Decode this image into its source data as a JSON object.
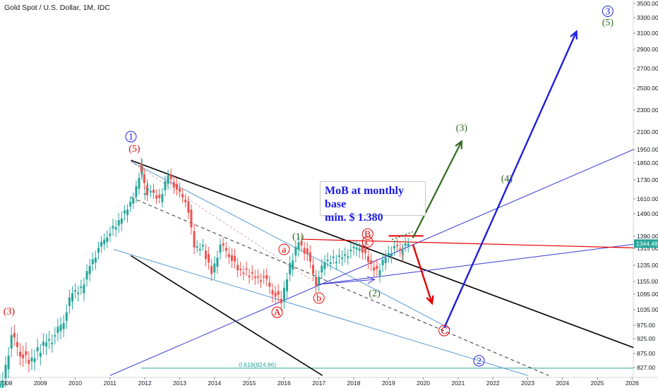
{
  "header": {
    "title": "Gold Spot / U.S. Dollar, 1M, IDC"
  },
  "annotation": {
    "line1": "MoB at monthly base",
    "line2": "min. $ 1.380"
  },
  "colors": {
    "up": "#26a69a",
    "down": "#ef5350",
    "red": "#e60000",
    "blue": "#1f1fe0",
    "green": "#2e6b1e",
    "black": "#000000",
    "lightblue": "#5b9bd5",
    "fib": "#26a69a",
    "circ": "#1a1acc"
  },
  "chart_data": {
    "type": "candlestick",
    "title": "Gold Spot / U.S. Dollar, 1M, IDC",
    "x_ticks": [
      "2008",
      "2009",
      "2010",
      "2011",
      "2012",
      "2013",
      "2014",
      "2015",
      "2016",
      "2017",
      "2018",
      "2019",
      "2020",
      "2021",
      "2022",
      "2023",
      "2024",
      "2025",
      "2026"
    ],
    "y_ticks": [
      827,
      875,
      925,
      975,
      1035,
      1095,
      1155,
      1235,
      1315,
      1390,
      1490,
      1610,
      1730,
      1850,
      1950,
      2100,
      2300,
      2500,
      2700,
      2900,
      3100,
      3300,
      3500
    ],
    "ylim": [
      800,
      3500
    ],
    "last_price": "1344.48",
    "fib_label": "0.618(824.86)",
    "fib_level": 824.86,
    "quarterly_closes": [
      [
        2007.75,
        720,
        790
      ],
      [
        2008.0,
        790,
        930
      ],
      [
        2008.25,
        930,
        880
      ],
      [
        2008.5,
        880,
        840
      ],
      [
        2008.75,
        840,
        880
      ],
      [
        2009.0,
        880,
        920
      ],
      [
        2009.25,
        920,
        930
      ],
      [
        2009.5,
        930,
        1000
      ],
      [
        2009.75,
        1000,
        1100
      ],
      [
        2010.0,
        1100,
        1115
      ],
      [
        2010.25,
        1115,
        1240
      ],
      [
        2010.5,
        1240,
        1310
      ],
      [
        2010.75,
        1310,
        1400
      ],
      [
        2011.0,
        1400,
        1430
      ],
      [
        2011.25,
        1430,
        1500
      ],
      [
        2011.5,
        1500,
        1620
      ],
      [
        2011.75,
        1620,
        1830
      ],
      [
        2011.9,
        1830,
        1650
      ],
      [
        2012.0,
        1650,
        1660
      ],
      [
        2012.25,
        1660,
        1600
      ],
      [
        2012.5,
        1600,
        1770
      ],
      [
        2012.75,
        1770,
        1660
      ],
      [
        2013.0,
        1660,
        1600
      ],
      [
        2013.25,
        1600,
        1320
      ],
      [
        2013.5,
        1320,
        1320
      ],
      [
        2013.75,
        1320,
        1200
      ],
      [
        2014.0,
        1200,
        1330
      ],
      [
        2014.25,
        1330,
        1290
      ],
      [
        2014.5,
        1290,
        1210
      ],
      [
        2014.75,
        1210,
        1200
      ],
      [
        2015.0,
        1200,
        1180
      ],
      [
        2015.25,
        1180,
        1170
      ],
      [
        2015.5,
        1170,
        1110
      ],
      [
        2015.75,
        1110,
        1060
      ],
      [
        2016.0,
        1060,
        1230
      ],
      [
        2016.25,
        1230,
        1360
      ],
      [
        2016.5,
        1360,
        1280
      ],
      [
        2016.75,
        1280,
        1150
      ],
      [
        2017.0,
        1150,
        1250
      ],
      [
        2017.25,
        1250,
        1260
      ],
      [
        2017.5,
        1260,
        1280
      ],
      [
        2017.75,
        1280,
        1300
      ],
      [
        2018.0,
        1300,
        1330
      ],
      [
        2018.25,
        1330,
        1250
      ],
      [
        2018.5,
        1250,
        1200
      ],
      [
        2018.75,
        1200,
        1280
      ],
      [
        2019.0,
        1280,
        1320
      ],
      [
        2019.25,
        1320,
        1300
      ],
      [
        2019.4,
        1300,
        1344
      ]
    ],
    "labels": [
      {
        "text": "(3)",
        "x": 2008.1,
        "y": 1030,
        "color": "red"
      },
      {
        "text": "(5)",
        "x": 2011.7,
        "y": 1960,
        "color": "red"
      },
      {
        "text": "1",
        "x": 2011.6,
        "y": 2060,
        "color": "blue",
        "circle": true
      },
      {
        "text": "(1)",
        "x": 2016.4,
        "y": 1390,
        "color": "green"
      },
      {
        "text": "(2)",
        "x": 2018.6,
        "y": 1100,
        "color": "green"
      },
      {
        "text": "(3)",
        "x": 2021.1,
        "y": 2140,
        "color": "green"
      },
      {
        "text": "(4)",
        "x": 2022.4,
        "y": 1740,
        "color": "green"
      },
      {
        "text": "(5)",
        "x": 2025.3,
        "y": 3240,
        "color": "green"
      },
      {
        "text": "3",
        "x": 2025.3,
        "y": 3390,
        "color": "blue",
        "circle": true
      },
      {
        "text": "2",
        "x": 2021.6,
        "y": 850,
        "color": "blue",
        "circle": true
      },
      {
        "text": "a",
        "x": 2016.0,
        "y": 1310,
        "color": "red",
        "circle": true
      },
      {
        "text": "b",
        "x": 2017.0,
        "y": 1080,
        "color": "red",
        "circle": true
      },
      {
        "text": "c",
        "x": 2018.4,
        "y": 1355,
        "color": "red",
        "circle": true
      },
      {
        "text": "A",
        "x": 2015.8,
        "y": 1025,
        "color": "red",
        "circle": true
      },
      {
        "text": "B",
        "x": 2018.4,
        "y": 1400,
        "color": "red",
        "circle": true
      },
      {
        "text": "C",
        "x": 2020.6,
        "y": 955,
        "color": "red",
        "circle": true
      }
    ]
  }
}
